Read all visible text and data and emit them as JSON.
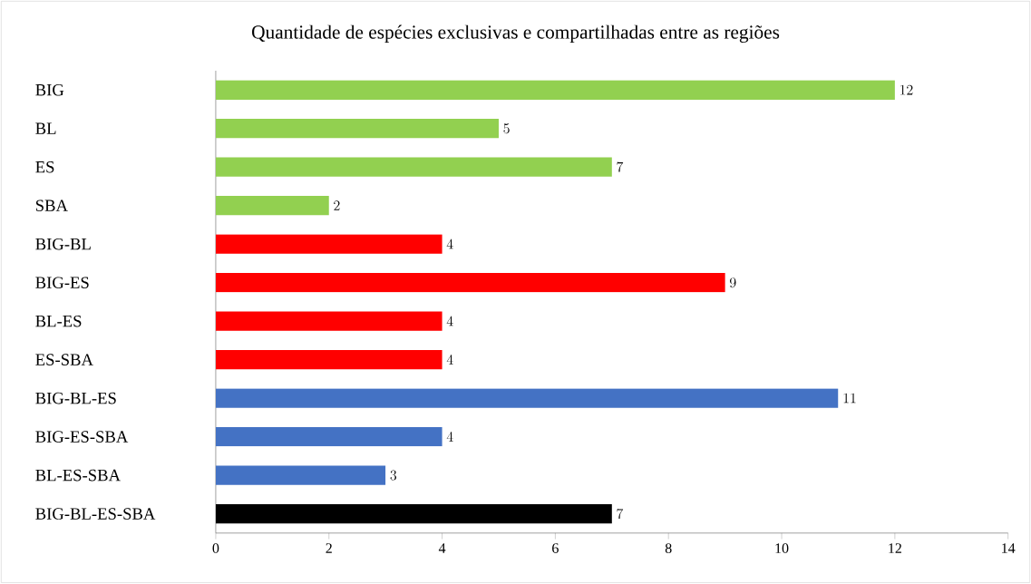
{
  "chart_data": {
    "type": "bar",
    "orientation": "horizontal",
    "title": "Quantidade de espécies exclusivas e compartilhadas entre as regiões",
    "categories": [
      "BIG",
      "BL",
      "ES",
      "SBA",
      "BIG-BL",
      "BIG-ES",
      "BL-ES",
      "ES-SBA",
      "BIG-BL-ES",
      "BIG-ES-SBA",
      "BL-ES-SBA",
      "BIG-BL-ES-SBA"
    ],
    "values": [
      12,
      5,
      7,
      2,
      4,
      9,
      4,
      4,
      11,
      4,
      3,
      7
    ],
    "colors": [
      "#92d050",
      "#92d050",
      "#92d050",
      "#92d050",
      "#ff0000",
      "#ff0000",
      "#ff0000",
      "#ff0000",
      "#4472c4",
      "#4472c4",
      "#4472c4",
      "#000000"
    ],
    "xlim": [
      0,
      14
    ],
    "xticks": [
      0,
      2,
      4,
      6,
      8,
      10,
      12,
      14
    ],
    "data_labels": true,
    "grid": false
  }
}
